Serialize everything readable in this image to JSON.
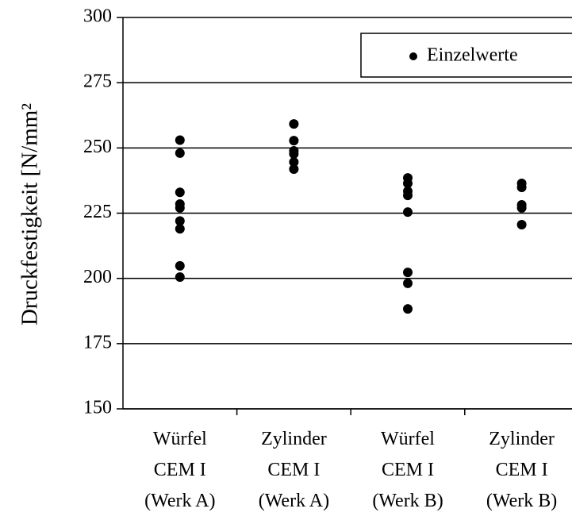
{
  "chart_data": {
    "type": "strip",
    "y_label": "Druckfestigkeit [N/mm²",
    "categories": [
      [
        "Würfel",
        "CEM I",
        "(Werk A)"
      ],
      [
        "Zylinder",
        "CEM I",
        "(Werk A)"
      ],
      [
        "Würfel",
        "CEM I",
        "(Werk B)"
      ],
      [
        "Zylinder",
        "CEM I",
        "(Werk B)"
      ]
    ],
    "series": [
      {
        "name": "Einzelwerte",
        "color": "#000000",
        "values": [
          [
            253,
            248,
            233,
            228.5,
            227,
            222,
            219,
            204.8,
            200.5
          ],
          [
            259.2,
            252.8,
            248.9,
            247.7,
            244.6,
            241.9
          ],
          [
            238.5,
            236.4,
            233.4,
            231.8,
            225.4,
            202.3,
            198.1,
            188.3
          ],
          [
            236.4,
            234.9,
            228.2,
            227,
            220.6
          ]
        ]
      }
    ],
    "ylim": [
      150,
      300
    ],
    "yticks": [
      150,
      175,
      200,
      225,
      250,
      275,
      300
    ],
    "grid": true,
    "legend": "top-right"
  }
}
